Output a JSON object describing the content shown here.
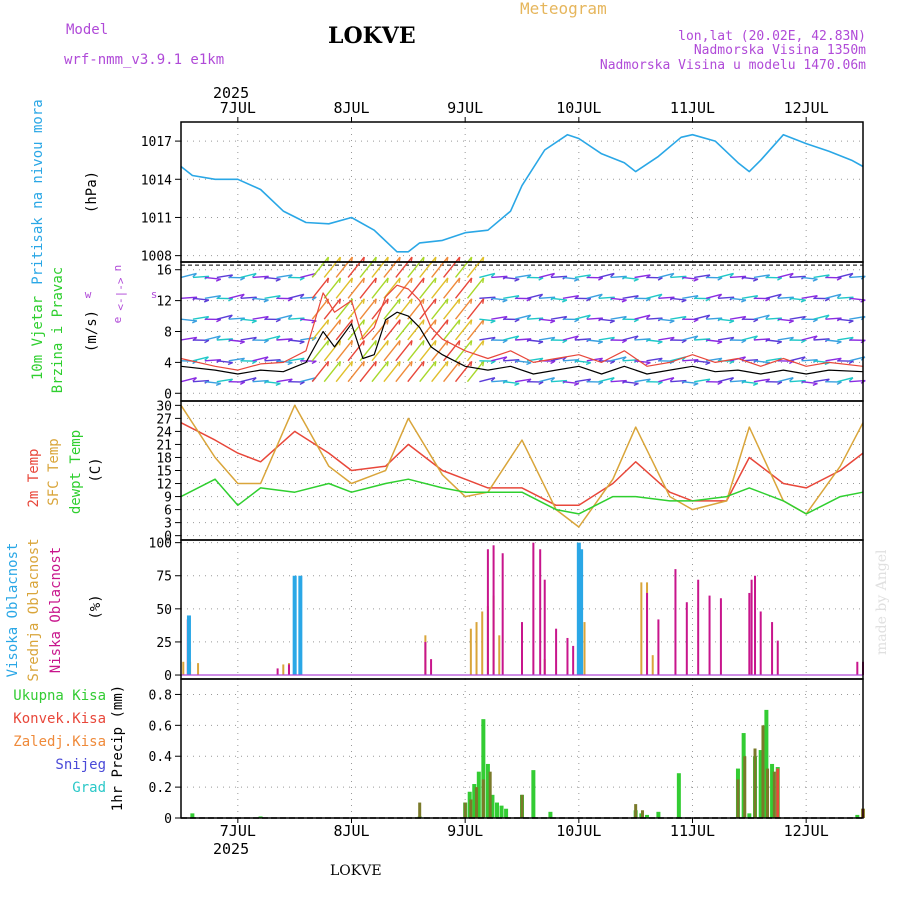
{
  "header": {
    "model_label": "Model",
    "model_name": "wrf-nmm_v3.9.1 e1km",
    "station": "LOKVE",
    "meteogram": "Meteogram",
    "lonlat": "lon,lat (20.02E, 42.83N)",
    "altitude": "Nadmorska Visina 1350m",
    "model_altitude": "Nadmorska Visina u modelu 1470.06m",
    "year": "2025",
    "footer_station": "LOKVE",
    "watermark": "made by Angel"
  },
  "colors": {
    "pressure": "#2aa7e6",
    "temp2m": "#e8473a",
    "sfc": "#d9a53a",
    "dewpt": "#2fcf2f",
    "high_cloud": "#2aa7e6",
    "mid_cloud": "#d9a53a",
    "low_cloud": "#c8158c",
    "total_precip": "#33cc33",
    "conv_precip": "#e8473a",
    "grid_precip": "#ef8a3a",
    "snow": "#4a4ad8",
    "hail": "#2bc8c8",
    "wind_label": "#2fcf2f",
    "dir_label": "#b04ad8"
  },
  "panel_labels": {
    "pressure": [
      "Pritisak na nivou mora"
    ],
    "pressure_unit": "(hPa)",
    "wind": [
      "10m Vjetar",
      "Brzina i Pravac"
    ],
    "wind_unit": "(m/s)",
    "wind_dir_legend": [
      "w",
      "<-|->",
      "s",
      "n",
      "e"
    ],
    "temp": [
      "2m Temp",
      "SFC Temp",
      "dewpt Temp"
    ],
    "temp_unit": "(C)",
    "cloud": [
      "Visoka Oblacnost",
      "Srednja Oblacnost",
      "Niska Oblacnost"
    ],
    "cloud_unit": "(%)",
    "precip_legend": [
      "Ukupna Kisa",
      "Konvek.Kisa",
      "Zaledj.Kisa",
      "Snijeg",
      "Grad"
    ],
    "precip_unit": "1hr Precip (mm)"
  },
  "chart_data": {
    "type": "line",
    "x_axis": {
      "days": [
        "7JUL",
        "8JUL",
        "9JUL",
        "10JUL",
        "11JUL",
        "12JUL"
      ],
      "range_days_from": "6JUL 12:00",
      "range_days_to": "12JUL 12:00"
    },
    "pressure": {
      "ylabel": "(hPa)",
      "ylim": [
        1007.5,
        1018.5
      ],
      "ticks": [
        1008,
        1011,
        1014,
        1017
      ],
      "times": [
        0.5,
        0.6,
        0.8,
        1.0,
        1.2,
        1.4,
        1.6,
        1.8,
        2.0,
        2.2,
        2.4,
        2.5,
        2.6,
        2.8,
        3.0,
        3.2,
        3.4,
        3.5,
        3.7,
        3.9,
        4.0,
        4.2,
        4.4,
        4.5,
        4.7,
        4.9,
        5.0,
        5.2,
        5.4,
        5.5,
        5.6,
        5.8,
        6.0,
        6.2,
        6.4,
        6.5
      ],
      "values": [
        1015.0,
        1014.3,
        1014.0,
        1014.0,
        1013.2,
        1011.5,
        1010.6,
        1010.5,
        1011.0,
        1010.0,
        1008.3,
        1008.3,
        1009.0,
        1009.2,
        1009.8,
        1010.0,
        1011.5,
        1013.5,
        1016.3,
        1017.5,
        1017.2,
        1016.0,
        1015.3,
        1014.6,
        1015.8,
        1017.3,
        1017.5,
        1017.0,
        1015.3,
        1014.6,
        1015.5,
        1017.5,
        1016.8,
        1016.2,
        1015.5,
        1015.0
      ]
    },
    "wind": {
      "ylabel": "(m/s)",
      "ylim": [
        -1,
        17
      ],
      "ticks": [
        0,
        4,
        8,
        12,
        16
      ],
      "times": [
        0.5,
        0.8,
        1.0,
        1.2,
        1.4,
        1.6,
        1.75,
        1.85,
        2.0,
        2.1,
        2.2,
        2.3,
        2.4,
        2.5,
        2.6,
        2.7,
        2.8,
        3.0,
        3.2,
        3.4,
        3.6,
        3.8,
        4.0,
        4.2,
        4.4,
        4.6,
        4.8,
        5.0,
        5.2,
        5.4,
        5.6,
        5.8,
        6.0,
        6.2,
        6.5
      ],
      "speed": [
        3.5,
        3.0,
        2.5,
        3.0,
        2.8,
        4.0,
        8.0,
        6.0,
        9.0,
        4.5,
        5.0,
        9.5,
        10.5,
        10.0,
        8.5,
        6.0,
        5.0,
        3.5,
        3.0,
        3.5,
        2.5,
        3.0,
        3.5,
        2.5,
        3.5,
        2.5,
        3.0,
        3.5,
        2.8,
        3.0,
        2.5,
        3.0,
        2.5,
        3.0,
        2.8
      ],
      "gust": [
        4.5,
        3.5,
        3.0,
        3.8,
        4.0,
        5.5,
        13.0,
        10.5,
        12.0,
        7.0,
        8.5,
        12.5,
        14.0,
        13.5,
        12.0,
        8.5,
        7.0,
        5.5,
        4.5,
        5.5,
        4.0,
        4.5,
        5.0,
        4.0,
        5.5,
        3.5,
        4.0,
        5.0,
        4.0,
        4.5,
        3.5,
        4.5,
        3.5,
        4.0,
        3.5
      ]
    },
    "temperature": {
      "ylabel": "(C)",
      "ylim": [
        -1,
        31
      ],
      "ticks": [
        0,
        3,
        6,
        9,
        12,
        15,
        18,
        21,
        24,
        27,
        30
      ],
      "series": [
        {
          "name": "2m Temp",
          "times": [
            0.5,
            0.8,
            1.0,
            1.2,
            1.5,
            1.8,
            2.0,
            2.3,
            2.5,
            2.8,
            3.0,
            3.2,
            3.5,
            3.8,
            4.0,
            4.3,
            4.5,
            4.8,
            5.0,
            5.3,
            5.5,
            5.8,
            6.0,
            6.3,
            6.5
          ],
          "values": [
            26,
            22,
            19,
            17,
            24,
            19,
            15,
            16,
            21,
            15,
            13,
            11,
            11,
            7,
            7,
            12,
            17,
            10,
            8,
            8,
            18,
            12,
            11,
            15,
            19
          ]
        },
        {
          "name": "SFC Temp",
          "times": [
            0.5,
            0.8,
            1.0,
            1.2,
            1.5,
            1.8,
            2.0,
            2.3,
            2.5,
            2.8,
            3.0,
            3.2,
            3.5,
            3.8,
            4.0,
            4.3,
            4.5,
            4.8,
            5.0,
            5.3,
            5.5,
            5.8,
            6.0,
            6.3,
            6.5
          ],
          "values": [
            30,
            18,
            12,
            12,
            30,
            16,
            12,
            15,
            27,
            14,
            9,
            10,
            22,
            6,
            2,
            13,
            25,
            9,
            6,
            8,
            25,
            8,
            5,
            16,
            26
          ]
        },
        {
          "name": "dewpt Temp",
          "times": [
            0.5,
            0.8,
            1.0,
            1.2,
            1.5,
            1.8,
            2.0,
            2.3,
            2.5,
            2.8,
            3.0,
            3.2,
            3.5,
            3.8,
            4.0,
            4.3,
            4.5,
            4.8,
            5.0,
            5.3,
            5.5,
            5.8,
            6.0,
            6.3,
            6.5
          ],
          "values": [
            9,
            13,
            7,
            11,
            10,
            12,
            10,
            12,
            13,
            11,
            10,
            10,
            10,
            6,
            5,
            9,
            9,
            8,
            8,
            9,
            11,
            8,
            5,
            9,
            10
          ]
        }
      ]
    },
    "cloud": {
      "ylabel": "(%)",
      "ylim": [
        -3,
        102
      ],
      "ticks": [
        0,
        25,
        50,
        75,
        100
      ],
      "high": {
        "times": [
          0.57,
          1.5,
          1.55,
          4.0,
          4.02
        ],
        "values": [
          45,
          75,
          75,
          100,
          95
        ]
      },
      "mid": {
        "times": [
          0.52,
          0.58,
          0.65,
          1.4,
          1.45,
          2.65,
          3.05,
          3.1,
          3.15,
          3.2,
          3.25,
          3.3,
          3.7,
          4.0,
          4.05,
          4.55,
          4.6,
          4.65
        ],
        "values": [
          10,
          10,
          9,
          8,
          9,
          30,
          35,
          40,
          48,
          52,
          60,
          30,
          12,
          75,
          40,
          70,
          70,
          15
        ]
      },
      "low": {
        "times": [
          0.56,
          1.35,
          1.45,
          2.65,
          2.7,
          3.2,
          3.25,
          3.33,
          3.5,
          3.6,
          3.66,
          3.7,
          3.8,
          3.9,
          3.95,
          4.6,
          4.7,
          4.85,
          4.95,
          5.05,
          5.15,
          5.25,
          5.5,
          5.52,
          5.55,
          5.6,
          5.7,
          5.75,
          6.45,
          6.5
        ],
        "values": [
          42,
          5,
          8,
          25,
          12,
          95,
          98,
          92,
          40,
          100,
          95,
          72,
          35,
          28,
          22,
          62,
          42,
          80,
          55,
          72,
          60,
          58,
          62,
          72,
          75,
          48,
          40,
          26,
          10,
          10
        ]
      }
    },
    "precip": {
      "ylabel": "1hr Precip (mm)",
      "ylim": [
        0,
        0.9
      ],
      "ticks": [
        0,
        0.2,
        0.4,
        0.6,
        0.8
      ],
      "total": {
        "times": [
          0.6,
          1.2,
          2.6,
          3.0,
          3.04,
          3.08,
          3.12,
          3.16,
          3.2,
          3.24,
          3.28,
          3.32,
          3.36,
          3.5,
          3.6,
          3.75,
          4.5,
          4.55,
          4.6,
          4.7,
          4.88,
          5.4,
          5.45,
          5.5,
          5.55,
          5.6,
          5.65,
          5.7,
          5.75,
          6.45,
          6.5
        ],
        "values": [
          0.03,
          0.01,
          0.01,
          0.1,
          0.17,
          0.22,
          0.3,
          0.64,
          0.35,
          0.15,
          0.1,
          0.08,
          0.06,
          0.15,
          0.31,
          0.04,
          0.05,
          0.03,
          0.02,
          0.04,
          0.29,
          0.32,
          0.55,
          0.03,
          0.4,
          0.44,
          0.7,
          0.35,
          0.33,
          0.02,
          0.06
        ]
      },
      "grid": {
        "times": [
          2.6,
          3.0,
          3.05,
          3.1,
          3.16,
          3.22,
          3.5,
          4.5,
          4.56,
          5.4,
          5.46,
          5.55,
          5.62,
          5.66,
          5.72
        ],
        "values": [
          0.1,
          0.1,
          0.12,
          0.2,
          0.25,
          0.3,
          0.15,
          0.09,
          0.05,
          0.25,
          0.4,
          0.45,
          0.6,
          0.32,
          0.3
        ]
      },
      "conv": {
        "times": [
          5.75,
          6.5
        ],
        "values": [
          0.32,
          0.06
        ]
      }
    }
  }
}
